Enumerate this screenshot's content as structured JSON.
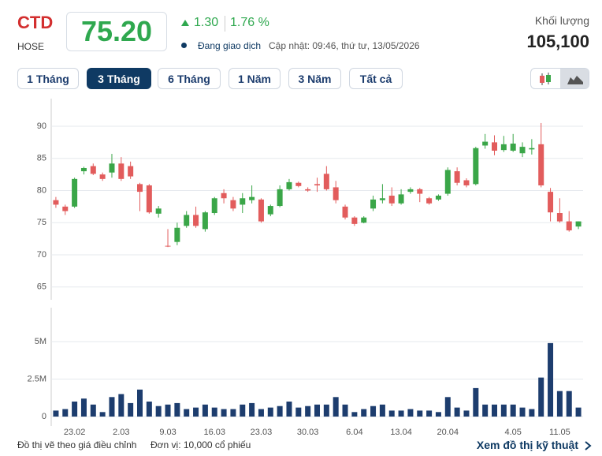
{
  "header": {
    "symbol": "CTD",
    "exchange": "HOSE",
    "price": "75.20",
    "change": "1.30",
    "change_pct": "1.76 %",
    "status": "Đang giao dịch",
    "updated": "Cập nhật: 09:46, thứ tư, 13/05/2026",
    "volume_label": "Khối lượng",
    "volume": "105,100"
  },
  "ranges": {
    "options": [
      "1 Tháng",
      "3 Tháng",
      "6 Tháng",
      "1 Năm",
      "3 Năm",
      "Tất cả"
    ],
    "active": 1
  },
  "footer": {
    "note": "Đồ thị vẽ theo giá điều chỉnh",
    "unit": "Đơn vị: 10,000 cổ phiếu",
    "link": "Xem đồ thị kỹ thuật"
  },
  "chart_data": {
    "type": "candlestick",
    "categories": [
      null,
      null,
      "23.02",
      null,
      null,
      null,
      null,
      "2.03",
      null,
      null,
      null,
      null,
      "9.03",
      null,
      null,
      null,
      null,
      "16.03",
      null,
      null,
      null,
      null,
      "23.03",
      null,
      null,
      null,
      null,
      "30.03",
      null,
      null,
      null,
      null,
      "6.04",
      null,
      null,
      null,
      null,
      "13.04",
      null,
      null,
      null,
      null,
      "20.04",
      null,
      null,
      null,
      null,
      null,
      null,
      "4.05",
      null,
      null,
      null,
      null,
      "11.05",
      null,
      null
    ],
    "open": [
      78.5,
      77.5,
      77.5,
      83.0,
      83.8,
      82.5,
      82.8,
      84.2,
      83.8,
      81.0,
      80.8,
      76.4,
      71.4,
      72.0,
      74.5,
      76.2,
      74.0,
      76.5,
      79.6,
      78.5,
      77.8,
      78.5,
      78.6,
      76.3,
      77.6,
      80.2,
      81.2,
      80.2,
      81.0,
      82.6,
      80.5,
      77.5,
      75.8,
      75.0,
      77.2,
      78.5,
      79.2,
      78.0,
      79.8,
      80.2,
      78.8,
      78.6,
      79.5,
      83.0,
      81.6,
      81.0,
      87.0,
      87.5,
      86.3,
      86.2,
      85.8,
      86.4,
      87.2,
      79.8,
      76.5,
      75.2,
      74.4
    ],
    "high": [
      79.0,
      77.8,
      82.0,
      83.7,
      84.2,
      82.8,
      85.7,
      85.2,
      84.5,
      81.2,
      81.0,
      77.6,
      74.0,
      75.0,
      76.8,
      77.5,
      76.8,
      79.0,
      80.2,
      79.0,
      79.6,
      80.8,
      78.8,
      77.8,
      80.8,
      81.8,
      81.4,
      80.5,
      82.0,
      83.8,
      81.5,
      77.8,
      76.0,
      76.0,
      79.2,
      81.0,
      80.5,
      80.2,
      80.5,
      80.4,
      79.0,
      79.4,
      83.6,
      83.6,
      81.9,
      86.8,
      88.8,
      88.6,
      88.5,
      88.8,
      87.5,
      88.0,
      90.5,
      80.4,
      78.8,
      76.8,
      75.2
    ],
    "low": [
      77.3,
      76.2,
      77.3,
      82.5,
      82.4,
      81.5,
      82.0,
      81.5,
      81.8,
      76.8,
      76.4,
      75.8,
      71.2,
      71.5,
      74.2,
      74.2,
      73.6,
      76.2,
      78.0,
      76.8,
      76.5,
      78.0,
      75.0,
      76.0,
      77.4,
      80.0,
      80.5,
      79.8,
      79.8,
      80.0,
      78.0,
      75.5,
      74.5,
      74.9,
      76.8,
      78.0,
      77.6,
      77.8,
      79.5,
      78.2,
      77.8,
      78.4,
      79.2,
      80.8,
      80.5,
      80.8,
      86.5,
      85.5,
      86.0,
      86.0,
      85.2,
      85.6,
      80.5,
      75.2,
      75.0,
      73.6,
      74.0
    ],
    "close": [
      77.8,
      76.8,
      81.8,
      83.5,
      82.6,
      81.8,
      84.2,
      81.8,
      82.2,
      79.8,
      76.6,
      77.2,
      71.3,
      74.2,
      76.2,
      74.5,
      76.6,
      78.8,
      78.8,
      77.2,
      78.8,
      79.0,
      75.2,
      77.6,
      80.2,
      81.3,
      80.7,
      80.0,
      80.8,
      80.2,
      78.5,
      75.8,
      74.8,
      75.8,
      78.6,
      78.8,
      78.0,
      79.4,
      80.2,
      79.5,
      78.0,
      79.2,
      83.2,
      81.2,
      80.8,
      86.6,
      87.6,
      86.2,
      87.2,
      87.3,
      86.8,
      86.6,
      80.8,
      76.6,
      75.2,
      73.8,
      75.2
    ],
    "volume": [
      400000,
      500000,
      1000000,
      1200000,
      800000,
      300000,
      1300000,
      1500000,
      900000,
      1800000,
      1000000,
      700000,
      800000,
      900000,
      500000,
      600000,
      800000,
      600000,
      500000,
      500000,
      800000,
      900000,
      500000,
      600000,
      700000,
      1000000,
      600000,
      700000,
      800000,
      800000,
      1300000,
      800000,
      300000,
      500000,
      700000,
      800000,
      400000,
      400000,
      500000,
      400000,
      400000,
      300000,
      1300000,
      600000,
      400000,
      1900000,
      800000,
      800000,
      800000,
      800000,
      600000,
      500000,
      2600000,
      4900000,
      1700000,
      1700000,
      600000
    ],
    "up_color": "#3aa648",
    "down_color": "#e25c5c",
    "volume_color": "#1d3d6e",
    "ylim": [
      63,
      94.3
    ],
    "yticks": [
      65,
      70,
      75,
      80,
      85,
      90
    ],
    "volume_ylim": [
      -630000,
      7260000
    ],
    "volume_yticks": [
      0,
      {
        "value": 2500000,
        "label": "2.5M"
      },
      {
        "value": 5000000,
        "label": "5M"
      }
    ],
    "grid": true
  }
}
